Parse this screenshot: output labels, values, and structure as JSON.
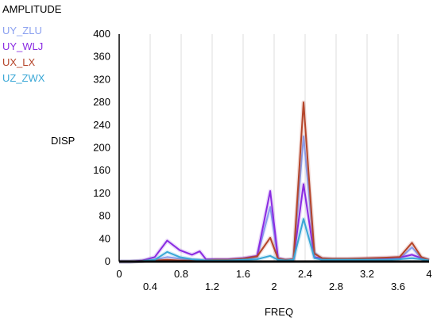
{
  "chart_data": {
    "type": "line",
    "title": "AMPLITUDE",
    "xlabel": "FREQ",
    "ylabel": "DISP",
    "xlim": [
      0,
      4
    ],
    "ylim": [
      0,
      400
    ],
    "grid": true,
    "legend_position": "top-left",
    "x_ticks_bottom": [
      "0.4",
      "1.2",
      "2",
      "2.8",
      "3.6"
    ],
    "x_ticks_top": [
      "0",
      "0.8",
      "1.6",
      "2.4",
      "3.2",
      "4"
    ],
    "y_ticks": [
      "0",
      "40",
      "80",
      "120",
      "160",
      "200",
      "240",
      "280",
      "320",
      "360",
      "400"
    ],
    "x": [
      0.0,
      0.14,
      0.3,
      0.46,
      0.62,
      0.78,
      0.94,
      1.04,
      1.12,
      1.25,
      1.4,
      1.6,
      1.78,
      1.95,
      2.05,
      2.15,
      2.25,
      2.38,
      2.52,
      2.62,
      2.75,
      2.95,
      3.2,
      3.45,
      3.62,
      3.78,
      3.9,
      4.0
    ],
    "series": [
      {
        "name": "UY_ZLU",
        "color": "#8aa0f0",
        "values": [
          0,
          0,
          1,
          3,
          8,
          5,
          3,
          2,
          2,
          2,
          2,
          4,
          8,
          96,
          5,
          2,
          4,
          220,
          16,
          4,
          3,
          3,
          3,
          4,
          5,
          25,
          6,
          2
        ]
      },
      {
        "name": "UY_WLJ",
        "color": "#8a2be2",
        "values": [
          0,
          0,
          2,
          8,
          37,
          20,
          12,
          18,
          4,
          4,
          4,
          6,
          10,
          124,
          6,
          3,
          4,
          136,
          8,
          5,
          4,
          4,
          5,
          6,
          7,
          12,
          6,
          3
        ]
      },
      {
        "name": "UX_LX",
        "color": "#b5452a",
        "values": [
          0,
          0,
          1,
          2,
          3,
          2,
          2,
          2,
          2,
          3,
          3,
          5,
          9,
          42,
          5,
          3,
          4,
          280,
          14,
          6,
          5,
          5,
          6,
          7,
          8,
          33,
          8,
          3
        ]
      },
      {
        "name": "UZ_ZWX",
        "color": "#3aa7d6",
        "values": [
          0,
          0,
          1,
          3,
          17,
          8,
          4,
          3,
          2,
          2,
          2,
          3,
          4,
          10,
          3,
          2,
          3,
          75,
          6,
          3,
          3,
          3,
          3,
          3,
          4,
          6,
          4,
          2
        ]
      }
    ]
  }
}
